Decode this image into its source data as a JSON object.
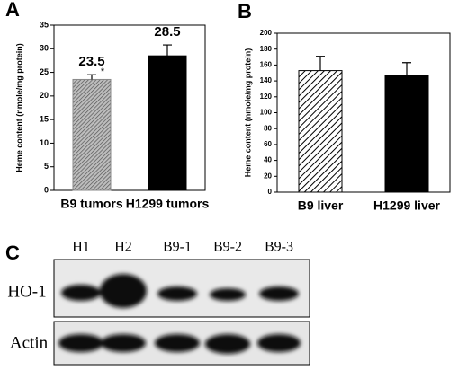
{
  "chart_data": [
    {
      "type": "bar",
      "panel": "A",
      "ylabel": "Heme content (nmole/mg protein)",
      "categories": [
        "B9 tumors",
        "H1299 tumors"
      ],
      "values": [
        23.5,
        28.5
      ],
      "errors": [
        1.0,
        2.3
      ],
      "colors": [
        "#8a8a8a",
        "#000000"
      ],
      "hatch": [
        true,
        false
      ],
      "show_value_labels": true,
      "annotation": "*",
      "ylim": [
        0,
        35
      ],
      "yticks": [
        0,
        5,
        10,
        15,
        20,
        25,
        30,
        35
      ]
    },
    {
      "type": "bar",
      "panel": "B",
      "ylabel": "Heme content (nmole/mg protein)",
      "categories": [
        "B9 liver",
        "H1299 liver"
      ],
      "values": [
        153,
        147
      ],
      "errors": [
        18,
        16
      ],
      "colors": [
        "#000000",
        "#000000"
      ],
      "hatch": [
        true,
        false
      ],
      "show_value_labels": false,
      "ylim": [
        0,
        200
      ],
      "yticks": [
        0,
        20,
        40,
        60,
        80,
        100,
        120,
        140,
        160,
        180,
        200
      ]
    }
  ],
  "blot": {
    "panel": "C",
    "lanes": [
      "H1",
      "H2",
      "B9-1",
      "B9-2",
      "B9-3"
    ],
    "rows": [
      "HO-1",
      "Actin"
    ]
  }
}
